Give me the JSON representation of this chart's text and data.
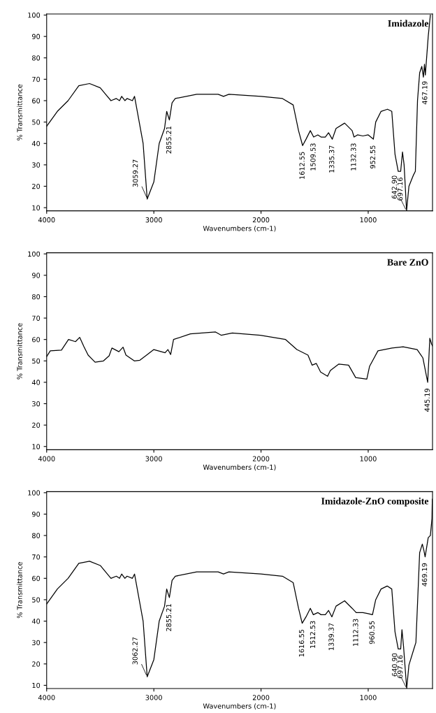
{
  "chart_data": [
    {
      "type": "line",
      "title": "Imidazole",
      "xlabel": "Wavenumbers (cm-1)",
      "ylabel": "% Transmittance",
      "xlim": [
        4000,
        400
      ],
      "ylim": [
        8.5,
        100.5
      ],
      "xticks": [
        4000,
        3000,
        2000,
        1000
      ],
      "yticks": [
        10,
        20,
        30,
        40,
        50,
        60,
        70,
        80,
        90,
        100
      ],
      "grid": false,
      "legend": false,
      "marker": "none",
      "line_style": "solid",
      "series": [
        {
          "color": "#000000",
          "x": [
            4000,
            3900,
            3800,
            3700,
            3600,
            3500,
            3450,
            3400,
            3350,
            3320,
            3300,
            3270,
            3250,
            3200,
            3180,
            3100,
            3062,
            3000,
            2950,
            2900,
            2880,
            2855,
            2830,
            2800,
            2600,
            2400,
            2350,
            2300,
            2000,
            1800,
            1700,
            1650,
            1612,
            1580,
            1540,
            1509,
            1470,
            1440,
            1400,
            1370,
            1335,
            1300,
            1220,
            1150,
            1132,
            1100,
            1050,
            1000,
            952,
            930,
            880,
            820,
            780,
            750,
            720,
            697,
            680,
            665,
            642,
            620,
            580,
            560,
            540,
            520,
            500,
            485,
            475,
            467,
            440,
            420
          ],
          "values": [
            48,
            55,
            60,
            67,
            68,
            66,
            63,
            60,
            61,
            60,
            62,
            60,
            61,
            60,
            62,
            40,
            14,
            22,
            40,
            47,
            55,
            51,
            59,
            61,
            63,
            63,
            62,
            63,
            62,
            61,
            58,
            46,
            39,
            42,
            46,
            43,
            44,
            43,
            43,
            45,
            42,
            47,
            49.5,
            46,
            43,
            44,
            43.5,
            44,
            42,
            50,
            55,
            56,
            55,
            35,
            27,
            27,
            36,
            30,
            8.5,
            20,
            25,
            27,
            60,
            73,
            76,
            71,
            77,
            72,
            90,
            100
          ]
        }
      ],
      "annotations": [
        {
          "text": "3059.27",
          "x": 3059.27,
          "y": 14
        },
        {
          "text": "2855.21",
          "x": 2855.21,
          "y": 51
        },
        {
          "text": "1612.55",
          "x": 1612.55,
          "y": 39
        },
        {
          "text": "1509.53",
          "x": 1509.53,
          "y": 43
        },
        {
          "text": "1335.37",
          "x": 1335.37,
          "y": 42
        },
        {
          "text": "1132.33",
          "x": 1132.33,
          "y": 43
        },
        {
          "text": "952.55",
          "x": 952.55,
          "y": 42
        },
        {
          "text": "642.90",
          "x": 642.9,
          "y": 8.5
        },
        {
          "text": "697.16",
          "x": 697.16,
          "y": 27
        },
        {
          "text": "467.19",
          "x": 467.19,
          "y": 72
        }
      ]
    },
    {
      "type": "line",
      "title": "Bare ZnO",
      "xlabel": "Wavenumbers (cm-1)",
      "ylabel": "% Transmittance",
      "xlim": [
        4000,
        400
      ],
      "ylim": [
        8.5,
        100.5
      ],
      "xticks": [
        4000,
        3000,
        2000,
        1000
      ],
      "yticks": [
        10,
        20,
        30,
        40,
        50,
        60,
        70,
        80,
        90,
        100
      ],
      "grid": false,
      "legend": false,
      "marker": "none",
      "line_style": "solid",
      "series": [
        {
          "color": "#000000",
          "x": [
            4000,
            3966,
            3862,
            3796,
            3731,
            3692,
            3652,
            3613,
            3548,
            3470,
            3417,
            3391,
            3326,
            3287,
            3260,
            3182,
            3130,
            3000,
            2895,
            2869,
            2843,
            2816,
            2659,
            2424,
            2372,
            2268,
            2006,
            1771,
            1666,
            1562,
            1523,
            1484,
            1444,
            1379,
            1353,
            1274,
            1183,
            1117,
            1013,
            987,
            909,
            778,
            674,
            543,
            490,
            445,
            425,
            410,
            400
          ],
          "values": [
            52,
            54.7,
            55,
            60,
            59,
            61,
            56.6,
            52.7,
            49.4,
            50,
            52.4,
            56,
            54.3,
            56.4,
            52.7,
            50,
            50.3,
            55.3,
            53.8,
            55.3,
            53,
            60,
            62.6,
            63.5,
            62,
            63,
            62,
            60,
            55.3,
            52.7,
            48,
            48.8,
            44.8,
            42.8,
            45.5,
            48.5,
            48,
            42.2,
            41.5,
            47.5,
            54.7,
            56,
            56.6,
            55.3,
            51.4,
            40,
            60.6,
            58,
            57
          ]
        }
      ],
      "annotations": [
        {
          "text": "445.19",
          "x": 445.19,
          "y": 40
        }
      ]
    },
    {
      "type": "line",
      "title": "Imidazole-ZnO composite",
      "xlabel": "Wavenumbers (cm-1)",
      "ylabel": "% Transmittance",
      "xlim": [
        4000,
        400
      ],
      "ylim": [
        8.5,
        100.5
      ],
      "xticks": [
        4000,
        3000,
        2000,
        1000
      ],
      "yticks": [
        10,
        20,
        30,
        40,
        50,
        60,
        70,
        80,
        90,
        100
      ],
      "grid": false,
      "legend": false,
      "marker": "none",
      "line_style": "solid",
      "series": [
        {
          "color": "#000000",
          "x": [
            4000,
            3900,
            3800,
            3700,
            3600,
            3500,
            3450,
            3400,
            3350,
            3320,
            3300,
            3270,
            3250,
            3200,
            3180,
            3100,
            3062,
            3000,
            2950,
            2900,
            2880,
            2855,
            2830,
            2800,
            2600,
            2400,
            2350,
            2300,
            2000,
            1800,
            1700,
            1650,
            1616,
            1580,
            1540,
            1512,
            1470,
            1440,
            1400,
            1370,
            1339,
            1300,
            1220,
            1150,
            1112,
            1050,
            1000,
            960,
            930,
            880,
            823,
            780,
            750,
            720,
            697,
            685,
            670,
            641,
            620,
            570,
            555,
            520,
            495,
            480,
            469,
            440,
            420,
            405,
            402
          ],
          "values": [
            48,
            55,
            60,
            67,
            68,
            66,
            63,
            60,
            61,
            60,
            62,
            60,
            61,
            60,
            62,
            40,
            14,
            22,
            40,
            47,
            55,
            51,
            59,
            61,
            63,
            63,
            62,
            63,
            62,
            61,
            58,
            46,
            39,
            42,
            46,
            43,
            44,
            43,
            43,
            45,
            42,
            47,
            49.5,
            46,
            44,
            44,
            43.5,
            43,
            50,
            55,
            56.4,
            55,
            35,
            27,
            27,
            36,
            28,
            8.5,
            19.5,
            27.6,
            30,
            72,
            76,
            73,
            70,
            79,
            80,
            88,
            97
          ]
        }
      ],
      "annotations": [
        {
          "text": "3062.27",
          "x": 3062.27,
          "y": 14
        },
        {
          "text": "2855.21",
          "x": 2855.21,
          "y": 51
        },
        {
          "text": "1616.55",
          "x": 1616.55,
          "y": 39
        },
        {
          "text": "1512.53",
          "x": 1512.53,
          "y": 43
        },
        {
          "text": "1339.37",
          "x": 1339.37,
          "y": 42
        },
        {
          "text": "1112.33",
          "x": 1112.33,
          "y": 44
        },
        {
          "text": "960.55",
          "x": 960.55,
          "y": 43
        },
        {
          "text": "640.90",
          "x": 640.9,
          "y": 8.5
        },
        {
          "text": "697.16",
          "x": 697.16,
          "y": 27
        },
        {
          "text": "469.19",
          "x": 469.19,
          "y": 70
        }
      ]
    }
  ]
}
